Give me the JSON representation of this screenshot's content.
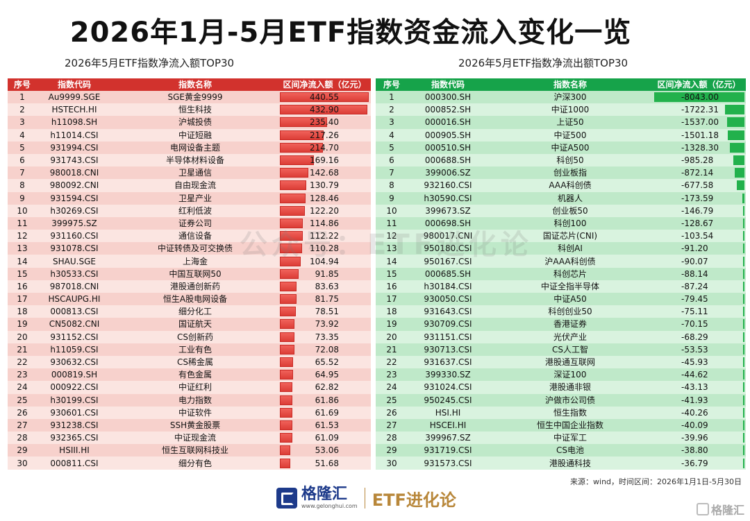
{
  "title": "2026年1月-5月ETF指数资金流入变化一览",
  "left_subtitle": "2026年5月ETF指数净流入额TOP30",
  "right_subtitle": "2026年5月ETF指数净流出额TOP30",
  "headers": {
    "rank": "序号",
    "code": "指数代码",
    "name": "指数名称",
    "value": "区间净流入额（亿元）"
  },
  "inflow": [
    {
      "rank": "1",
      "code": "Au9999.SGE",
      "name": "SGE黄金9999",
      "value": "440.55",
      "num": 440.55
    },
    {
      "rank": "2",
      "code": "HSTECH.HI",
      "name": "恒生科技",
      "value": "432.90",
      "num": 432.9
    },
    {
      "rank": "3",
      "code": "h11098.SH",
      "name": "沪城投债",
      "value": "235.40",
      "num": 235.4
    },
    {
      "rank": "4",
      "code": "h11014.CSI",
      "name": "中证短融",
      "value": "217.26",
      "num": 217.26
    },
    {
      "rank": "5",
      "code": "931994.CSI",
      "name": "电网设备主题",
      "value": "214.70",
      "num": 214.7
    },
    {
      "rank": "6",
      "code": "931743.CSI",
      "name": "半导体材料设备",
      "value": "169.16",
      "num": 169.16
    },
    {
      "rank": "7",
      "code": "980018.CNI",
      "name": "卫星通信",
      "value": "142.68",
      "num": 142.68
    },
    {
      "rank": "8",
      "code": "980092.CNI",
      "name": "自由现金流",
      "value": "130.79",
      "num": 130.79
    },
    {
      "rank": "9",
      "code": "931594.CSI",
      "name": "卫星产业",
      "value": "128.46",
      "num": 128.46
    },
    {
      "rank": "10",
      "code": "h30269.CSI",
      "name": "红利低波",
      "value": "122.20",
      "num": 122.2
    },
    {
      "rank": "11",
      "code": "399975.SZ",
      "name": "证券公司",
      "value": "114.86",
      "num": 114.86
    },
    {
      "rank": "12",
      "code": "931160.CSI",
      "name": "通信设备",
      "value": "112.22",
      "num": 112.22
    },
    {
      "rank": "13",
      "code": "931078.CSI",
      "name": "中证转债及可交换债",
      "value": "110.28",
      "num": 110.28
    },
    {
      "rank": "14",
      "code": "SHAU.SGE",
      "name": "上海金",
      "value": "104.94",
      "num": 104.94
    },
    {
      "rank": "15",
      "code": "h30533.CSI",
      "name": "中国互联网50",
      "value": "91.85",
      "num": 91.85
    },
    {
      "rank": "16",
      "code": "987018.CNI",
      "name": "港股通创新药",
      "value": "83.63",
      "num": 83.63
    },
    {
      "rank": "17",
      "code": "HSCAUPG.HI",
      "name": "恒生A股电网设备",
      "value": "81.75",
      "num": 81.75
    },
    {
      "rank": "18",
      "code": "000813.CSI",
      "name": "细分化工",
      "value": "78.51",
      "num": 78.51
    },
    {
      "rank": "19",
      "code": "CN5082.CNI",
      "name": "国证航天",
      "value": "73.92",
      "num": 73.92
    },
    {
      "rank": "20",
      "code": "931152.CSI",
      "name": "CS创新药",
      "value": "73.35",
      "num": 73.35
    },
    {
      "rank": "21",
      "code": "h11059.CSI",
      "name": "工业有色",
      "value": "72.08",
      "num": 72.08
    },
    {
      "rank": "22",
      "code": "930632.CSI",
      "name": "CS稀金属",
      "value": "65.52",
      "num": 65.52
    },
    {
      "rank": "23",
      "code": "000819.SH",
      "name": "有色金属",
      "value": "64.95",
      "num": 64.95
    },
    {
      "rank": "24",
      "code": "000922.CSI",
      "name": "中证红利",
      "value": "62.82",
      "num": 62.82
    },
    {
      "rank": "25",
      "code": "h30199.CSI",
      "name": "电力指数",
      "value": "61.86",
      "num": 61.86
    },
    {
      "rank": "26",
      "code": "930601.CSI",
      "name": "中证软件",
      "value": "61.69",
      "num": 61.69
    },
    {
      "rank": "27",
      "code": "931238.CSI",
      "name": "SSH黄金股票",
      "value": "61.53",
      "num": 61.53
    },
    {
      "rank": "28",
      "code": "932365.CSI",
      "name": "中证现金流",
      "value": "61.09",
      "num": 61.09
    },
    {
      "rank": "29",
      "code": "HSIII.HI",
      "name": "恒生互联网科技业",
      "value": "53.06",
      "num": 53.06
    },
    {
      "rank": "30",
      "code": "000811.CSI",
      "name": "细分有色",
      "value": "51.68",
      "num": 51.68
    }
  ],
  "outflow": [
    {
      "rank": "1",
      "code": "000300.SH",
      "name": "沪深300",
      "value": "-8043.00",
      "num": -8043.0
    },
    {
      "rank": "2",
      "code": "000852.SH",
      "name": "中证1000",
      "value": "-1722.31",
      "num": -1722.31
    },
    {
      "rank": "3",
      "code": "000016.SH",
      "name": "上证50",
      "value": "-1537.00",
      "num": -1537.0
    },
    {
      "rank": "4",
      "code": "000905.SH",
      "name": "中证500",
      "value": "-1501.18",
      "num": -1501.18
    },
    {
      "rank": "5",
      "code": "000510.SH",
      "name": "中证A500",
      "value": "-1328.30",
      "num": -1328.3
    },
    {
      "rank": "6",
      "code": "000688.SH",
      "name": "科创50",
      "value": "-985.28",
      "num": -985.28
    },
    {
      "rank": "7",
      "code": "399006.SZ",
      "name": "创业板指",
      "value": "-872.14",
      "num": -872.14
    },
    {
      "rank": "8",
      "code": "932160.CSI",
      "name": "AAA科创债",
      "value": "-677.58",
      "num": -677.58
    },
    {
      "rank": "9",
      "code": "h30590.CSI",
      "name": "机器人",
      "value": "-173.59",
      "num": -173.59
    },
    {
      "rank": "10",
      "code": "399673.SZ",
      "name": "创业板50",
      "value": "-146.79",
      "num": -146.79
    },
    {
      "rank": "11",
      "code": "000698.SH",
      "name": "科创100",
      "value": "-128.67",
      "num": -128.67
    },
    {
      "rank": "12",
      "code": "980017.CNI",
      "name": "国证芯片(CNI)",
      "value": "-103.54",
      "num": -103.54
    },
    {
      "rank": "13",
      "code": "950180.CSI",
      "name": "科创AI",
      "value": "-91.20",
      "num": -91.2
    },
    {
      "rank": "14",
      "code": "950167.CSI",
      "name": "沪AAA科创债",
      "value": "-90.07",
      "num": -90.07
    },
    {
      "rank": "15",
      "code": "000685.SH",
      "name": "科创芯片",
      "value": "-88.14",
      "num": -88.14
    },
    {
      "rank": "16",
      "code": "h30184.CSI",
      "name": "中证全指半导体",
      "value": "-87.24",
      "num": -87.24
    },
    {
      "rank": "17",
      "code": "930050.CSI",
      "name": "中证A50",
      "value": "-79.45",
      "num": -79.45
    },
    {
      "rank": "18",
      "code": "931643.CSI",
      "name": "科创创业50",
      "value": "-75.11",
      "num": -75.11
    },
    {
      "rank": "19",
      "code": "930709.CSI",
      "name": "香港证券",
      "value": "-70.15",
      "num": -70.15
    },
    {
      "rank": "20",
      "code": "931151.CSI",
      "name": "光伏产业",
      "value": "-68.29",
      "num": -68.29
    },
    {
      "rank": "21",
      "code": "930713.CSI",
      "name": "CS人工智",
      "value": "-53.53",
      "num": -53.53
    },
    {
      "rank": "22",
      "code": "931637.CSI",
      "name": "港股通互联网",
      "value": "-45.93",
      "num": -45.93
    },
    {
      "rank": "23",
      "code": "399330.SZ",
      "name": "深证100",
      "value": "-44.62",
      "num": -44.62
    },
    {
      "rank": "24",
      "code": "931024.CSI",
      "name": "港股通非银",
      "value": "-43.13",
      "num": -43.13
    },
    {
      "rank": "25",
      "code": "950245.CSI",
      "name": "沪做市公司债",
      "value": "-41.93",
      "num": -41.93
    },
    {
      "rank": "26",
      "code": "HSI.HI",
      "name": "恒生指数",
      "value": "-40.26",
      "num": -40.26
    },
    {
      "rank": "27",
      "code": "HSCEI.HI",
      "name": "恒生中国企业指数",
      "value": "-40.09",
      "num": -40.09
    },
    {
      "rank": "28",
      "code": "399967.SZ",
      "name": "中证军工",
      "value": "-39.96",
      "num": -39.96
    },
    {
      "rank": "29",
      "code": "931719.CSI",
      "name": "CS电池",
      "value": "-38.80",
      "num": -38.8
    },
    {
      "rank": "30",
      "code": "931573.CSI",
      "name": "港股通科技",
      "value": "-36.79",
      "num": -36.79
    }
  ],
  "source": "来源：wind，时间区间：2026年1月1日-5月30日",
  "brand_name": "格隆汇",
  "brand_url": "www.gelonghui.com",
  "brand_tag": "ETF进化论",
  "watermark": "公众号：ETF进化论",
  "corner_mark": "格隆汇",
  "colors": {
    "inflow_header": "#d2322d",
    "outflow_header": "#16a34a",
    "inflow_bar": "#e8473f",
    "outflow_bar": "#22b14c"
  }
}
